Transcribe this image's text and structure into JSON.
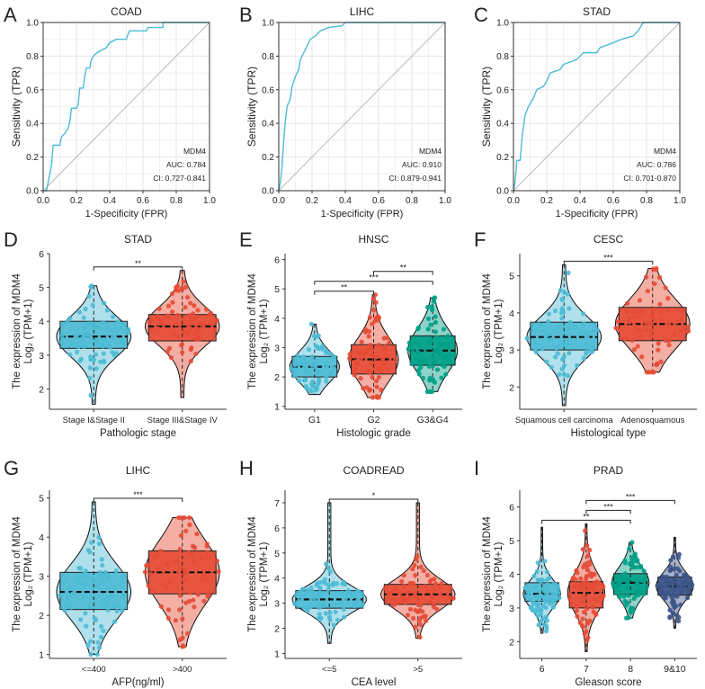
{
  "chart_data": [
    {
      "panel": "A",
      "type": "line",
      "subtype": "roc",
      "title": "COAD",
      "xlabel": "1-Specificity (FPR)",
      "ylabel": "Sensitivity (TPR)",
      "xlim": [
        0,
        1
      ],
      "ylim": [
        0,
        1
      ],
      "ticks": [
        "0.0",
        "0.2",
        "0.4",
        "0.6",
        "0.8",
        "1.0"
      ],
      "grid": true,
      "color": "#4DBBD5",
      "annotation": [
        "MDM4",
        "AUC: 0.784",
        "CI: 0.727-0.841"
      ],
      "points": [
        [
          0,
          0
        ],
        [
          0.02,
          0
        ],
        [
          0.03,
          0.05
        ],
        [
          0.04,
          0.1
        ],
        [
          0.05,
          0.15
        ],
        [
          0.06,
          0.27
        ],
        [
          0.1,
          0.27
        ],
        [
          0.11,
          0.32
        ],
        [
          0.13,
          0.34
        ],
        [
          0.15,
          0.37
        ],
        [
          0.16,
          0.41
        ],
        [
          0.17,
          0.49
        ],
        [
          0.2,
          0.49
        ],
        [
          0.21,
          0.51
        ],
        [
          0.22,
          0.61
        ],
        [
          0.24,
          0.61
        ],
        [
          0.25,
          0.68
        ],
        [
          0.26,
          0.73
        ],
        [
          0.28,
          0.73
        ],
        [
          0.29,
          0.78
        ],
        [
          0.31,
          0.81
        ],
        [
          0.34,
          0.83
        ],
        [
          0.38,
          0.85
        ],
        [
          0.4,
          0.88
        ],
        [
          0.44,
          0.9
        ],
        [
          0.5,
          0.9
        ],
        [
          0.51,
          0.93
        ],
        [
          0.52,
          0.95
        ],
        [
          0.62,
          0.95
        ],
        [
          0.63,
          0.97
        ],
        [
          0.72,
          0.97
        ],
        [
          0.72,
          1
        ],
        [
          1,
          1
        ]
      ]
    },
    {
      "panel": "B",
      "type": "line",
      "subtype": "roc",
      "title": "LIHC",
      "xlabel": "1-Specificity (FPR)",
      "ylabel": "Sensitivity (TPR)",
      "xlim": [
        0,
        1
      ],
      "ylim": [
        0,
        1
      ],
      "ticks": [
        "0.0",
        "0.2",
        "0.4",
        "0.6",
        "0.8",
        "1.0"
      ],
      "grid": true,
      "color": "#4DBBD5",
      "annotation": [
        "MDM4",
        "AUC: 0.910",
        "CI: 0.879-0.941"
      ],
      "points": [
        [
          0,
          0
        ],
        [
          0.01,
          0.05
        ],
        [
          0.02,
          0.15
        ],
        [
          0.03,
          0.3
        ],
        [
          0.04,
          0.42
        ],
        [
          0.05,
          0.5
        ],
        [
          0.07,
          0.55
        ],
        [
          0.08,
          0.62
        ],
        [
          0.1,
          0.68
        ],
        [
          0.12,
          0.72
        ],
        [
          0.13,
          0.78
        ],
        [
          0.15,
          0.82
        ],
        [
          0.17,
          0.86
        ],
        [
          0.19,
          0.9
        ],
        [
          0.22,
          0.92
        ],
        [
          0.25,
          0.95
        ],
        [
          0.3,
          0.97
        ],
        [
          0.38,
          0.98
        ],
        [
          0.4,
          1
        ],
        [
          1,
          1
        ]
      ]
    },
    {
      "panel": "C",
      "type": "line",
      "subtype": "roc",
      "title": "STAD",
      "xlabel": "1-Specificity (FPR)",
      "ylabel": "Sensitivity (TPR)",
      "xlim": [
        0,
        1
      ],
      "ylim": [
        0,
        1
      ],
      "ticks": [
        "0.0",
        "0.2",
        "0.4",
        "0.6",
        "0.8",
        "1.0"
      ],
      "grid": true,
      "color": "#4DBBD5",
      "annotation": [
        "MDM4",
        "AUC: 0.786",
        "CI: 0.701-0.870"
      ],
      "points": [
        [
          0,
          0
        ],
        [
          0.01,
          0.05
        ],
        [
          0.02,
          0.18
        ],
        [
          0.04,
          0.18
        ],
        [
          0.05,
          0.3
        ],
        [
          0.06,
          0.38
        ],
        [
          0.07,
          0.45
        ],
        [
          0.09,
          0.5
        ],
        [
          0.12,
          0.55
        ],
        [
          0.14,
          0.6
        ],
        [
          0.18,
          0.62
        ],
        [
          0.2,
          0.65
        ],
        [
          0.22,
          0.7
        ],
        [
          0.28,
          0.72
        ],
        [
          0.3,
          0.75
        ],
        [
          0.38,
          0.78
        ],
        [
          0.42,
          0.82
        ],
        [
          0.5,
          0.82
        ],
        [
          0.52,
          0.85
        ],
        [
          0.6,
          0.88
        ],
        [
          0.65,
          0.9
        ],
        [
          0.72,
          0.92
        ],
        [
          0.75,
          0.95
        ],
        [
          0.78,
          1
        ],
        [
          1,
          1
        ]
      ]
    },
    {
      "panel": "D",
      "type": "box",
      "title": "STAD",
      "xlabel": "Pathologic stage",
      "ylabel": [
        "The expression of MDM4",
        "Log₂ (TPM+1)"
      ],
      "ylim": [
        1.4,
        6
      ],
      "yticks": [
        "2",
        "3",
        "4",
        "5",
        "6"
      ],
      "groups": [
        {
          "name": "Stage I&Stage II",
          "min": 1.55,
          "q1": 3.2,
          "median": 3.55,
          "q3": 4.0,
          "max": 5.05,
          "color": "#4DBBD5"
        },
        {
          "name": "Stage III&Stage IV",
          "min": 1.75,
          "q1": 3.42,
          "median": 3.85,
          "q3": 4.2,
          "max": 5.5,
          "color": "#E64B35"
        }
      ],
      "significance": [
        {
          "from": 0,
          "to": 1,
          "label": "**"
        }
      ]
    },
    {
      "panel": "E",
      "type": "box",
      "title": "HNSC",
      "xlabel": "Histologic grade",
      "ylabel": [
        "The expression of MDM4",
        "Log₂ (TPM+1)"
      ],
      "ylim": [
        0.9,
        6.2
      ],
      "yticks": [
        "1",
        "2",
        "3",
        "4",
        "5",
        "6"
      ],
      "groups": [
        {
          "name": "G1",
          "min": 1.4,
          "q1": 2.0,
          "median": 2.35,
          "q3": 2.7,
          "max": 3.8,
          "color": "#4DBBD5"
        },
        {
          "name": "G2",
          "min": 1.3,
          "q1": 2.1,
          "median": 2.6,
          "q3": 3.1,
          "max": 4.8,
          "color": "#E64B35"
        },
        {
          "name": "G3&G4",
          "min": 1.5,
          "q1": 2.4,
          "median": 2.9,
          "q3": 3.4,
          "max": 4.7,
          "color": "#00A087"
        }
      ],
      "significance": [
        {
          "from": 0,
          "to": 1,
          "label": "**"
        },
        {
          "from": 0,
          "to": 2,
          "label": "***"
        },
        {
          "from": 1,
          "to": 2,
          "label": "**"
        }
      ]
    },
    {
      "panel": "F",
      "type": "box",
      "title": "CESC",
      "xlabel": "Histological type",
      "ylabel": [
        "The expression of MDM4",
        "Log₂ (TPM+1)"
      ],
      "ylim": [
        1.4,
        5.6
      ],
      "yticks": [
        "2",
        "3",
        "4",
        "5"
      ],
      "groups": [
        {
          "name": "Squamous cell carcinoma",
          "min": 1.5,
          "q1": 3.0,
          "median": 3.35,
          "q3": 3.75,
          "max": 5.3,
          "color": "#4DBBD5"
        },
        {
          "name": "Adenosquamous",
          "min": 2.4,
          "q1": 3.25,
          "median": 3.7,
          "q3": 4.15,
          "max": 5.2,
          "color": "#E64B35"
        }
      ],
      "significance": [
        {
          "from": 0,
          "to": 1,
          "label": "***"
        }
      ]
    },
    {
      "panel": "G",
      "type": "box",
      "title": "LIHC",
      "xlabel": "AFP(ng/ml)",
      "ylabel": [
        "The expression of MDM4",
        "Log₂ (TPM+1)"
      ],
      "ylim": [
        0.9,
        5.2
      ],
      "yticks": [
        "1",
        "2",
        "3",
        "4",
        "5"
      ],
      "groups": [
        {
          "name": "<=400",
          "min": 1.0,
          "q1": 2.15,
          "median": 2.6,
          "q3": 3.1,
          "max": 4.9,
          "color": "#4DBBD5"
        },
        {
          "name": ">400",
          "min": 1.2,
          "q1": 2.55,
          "median": 3.1,
          "q3": 3.65,
          "max": 4.5,
          "color": "#E64B35"
        }
      ],
      "significance": [
        {
          "from": 0,
          "to": 1,
          "label": "***"
        }
      ]
    },
    {
      "panel": "H",
      "type": "box",
      "title": "COADREAD",
      "xlabel": "CEA level",
      "ylabel": [
        "The expression of MDM4",
        "Log₂ (TPM+1)"
      ],
      "ylim": [
        0.8,
        7.5
      ],
      "yticks": [
        "1",
        "2",
        "3",
        "4",
        "5",
        "6",
        "7"
      ],
      "groups": [
        {
          "name": "<=5",
          "min": 1.4,
          "q1": 2.8,
          "median": 3.15,
          "q3": 3.5,
          "max": 7.0,
          "color": "#4DBBD5"
        },
        {
          "name": ">5",
          "min": 1.6,
          "q1": 2.95,
          "median": 3.35,
          "q3": 3.75,
          "max": 7.0,
          "color": "#E64B35"
        }
      ],
      "significance": [
        {
          "from": 0,
          "to": 1,
          "label": "*"
        }
      ]
    },
    {
      "panel": "I",
      "type": "box",
      "title": "PRAD",
      "xlabel": "Gleason score",
      "ylabel": [
        "The expression of MDM4",
        "Log₂ (TPM+1)"
      ],
      "ylim": [
        1.5,
        6.5
      ],
      "yticks": [
        "2",
        "3",
        "4",
        "5",
        "6"
      ],
      "groups": [
        {
          "name": "6",
          "min": 2.25,
          "q1": 3.2,
          "median": 3.42,
          "q3": 3.75,
          "max": 5.4,
          "color": "#4DBBD5"
        },
        {
          "name": "7",
          "min": 1.7,
          "q1": 3.0,
          "median": 3.45,
          "q3": 3.78,
          "max": 5.5,
          "color": "#E64B35"
        },
        {
          "name": "8",
          "min": 2.7,
          "q1": 3.4,
          "median": 3.75,
          "q3": 4.02,
          "max": 4.95,
          "color": "#00A087"
        },
        {
          "name": "9&10",
          "min": 2.4,
          "q1": 3.38,
          "median": 3.65,
          "q3": 3.92,
          "max": 5.1,
          "color": "#3C5488"
        }
      ],
      "significance": [
        {
          "from": 0,
          "to": 2,
          "label": "**"
        },
        {
          "from": 1,
          "to": 2,
          "label": "***"
        },
        {
          "from": 1,
          "to": 3,
          "label": "***"
        }
      ]
    }
  ]
}
